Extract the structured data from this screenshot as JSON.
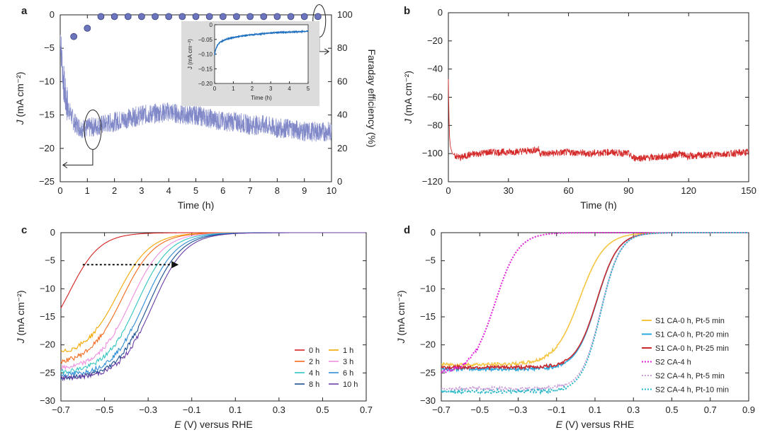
{
  "figure": {
    "panels": [
      "a",
      "b",
      "c",
      "d"
    ]
  },
  "chart_data": [
    {
      "panel": "a",
      "type": "line",
      "xlabel": "Time (h)",
      "ylabel": "J (mA cm⁻²)",
      "ylabel2": "Faraday efficiency (%)",
      "xlim": [
        0,
        10
      ],
      "ylim": [
        -25,
        0
      ],
      "ylim2": [
        0,
        100
      ],
      "xticks": [
        0,
        1,
        2,
        3,
        4,
        5,
        6,
        7,
        8,
        9,
        10
      ],
      "yticks": [
        0,
        -5,
        -10,
        -15,
        -20,
        -25
      ],
      "yticks2": [
        100,
        80,
        60,
        40,
        20,
        0
      ],
      "colors": {
        "current": "#8088c8",
        "fe_marker": "#6b74bd",
        "inset_line": "#1f6fbf",
        "inset_bg": "#dcdcdc"
      },
      "current_trace": {
        "name": "J",
        "x": [
          0,
          0.05,
          0.1,
          0.15,
          0.2,
          0.3,
          0.4,
          0.5,
          0.6,
          0.8,
          1.0,
          1.2,
          1.5,
          2,
          2.5,
          3,
          3.5,
          4,
          4.5,
          5,
          5.5,
          6,
          6.5,
          7,
          7.5,
          8,
          8.5,
          9,
          9.5,
          10
        ],
        "y": [
          -3,
          -6,
          -9,
          -11,
          -12.5,
          -14,
          -15,
          -16,
          -16.5,
          -17,
          -17,
          -16.8,
          -16.5,
          -16,
          -15.5,
          -15,
          -14.8,
          -14.5,
          -15,
          -15,
          -15.5,
          -16,
          -16,
          -16.5,
          -16.5,
          -17,
          -17,
          -17.5,
          -17.5,
          -17.5
        ],
        "noise_amplitude": 1.5
      },
      "fe_series": {
        "name": "Faraday efficiency",
        "x": [
          0.5,
          1.0,
          1.5,
          2.0,
          2.5,
          3.0,
          3.5,
          4.0,
          4.5,
          5.0,
          5.5,
          6.0,
          6.5,
          7.0,
          7.5,
          8.0,
          8.5,
          9.0,
          9.5
        ],
        "y": [
          87,
          92,
          99,
          99,
          99,
          99,
          99,
          99,
          99,
          99,
          99,
          99,
          99,
          99,
          99,
          99,
          99,
          99,
          99
        ]
      },
      "inset": {
        "xlabel": "Time (h)",
        "ylabel": "J (mA cm⁻²)",
        "xlim": [
          0,
          5
        ],
        "ylim": [
          -0.2,
          0
        ],
        "xticks": [
          0,
          1,
          2,
          3,
          4,
          5
        ],
        "yticks": [
          0,
          -0.05,
          -0.1,
          -0.15,
          -0.2
        ],
        "ytick_labels": [
          "0",
          "-0.05",
          "-0.10",
          "-0.15",
          "-0.20"
        ],
        "x": [
          0,
          0.03,
          0.08,
          0.15,
          0.25,
          0.4,
          0.6,
          0.8,
          1.0,
          1.5,
          2.0,
          2.5,
          3.0,
          3.5,
          4.0,
          4.5,
          5.0
        ],
        "y": [
          -0.105,
          -0.09,
          -0.08,
          -0.07,
          -0.062,
          -0.055,
          -0.05,
          -0.046,
          -0.043,
          -0.038,
          -0.034,
          -0.031,
          -0.028,
          -0.026,
          -0.025,
          -0.024,
          -0.022
        ]
      }
    },
    {
      "panel": "b",
      "type": "line",
      "xlabel": "Time (h)",
      "ylabel": "J (mA cm⁻²)",
      "xlim": [
        0,
        150
      ],
      "ylim": [
        -120,
        0
      ],
      "xticks": [
        0,
        30,
        60,
        90,
        120,
        150
      ],
      "yticks": [
        0,
        -20,
        -40,
        -60,
        -80,
        -100,
        -120
      ],
      "color": "#d42a2a",
      "x": [
        0,
        0.3,
        0.6,
        1,
        2,
        4,
        6,
        10,
        20,
        30,
        40,
        45,
        46,
        50,
        60,
        70,
        80,
        90,
        92,
        100,
        110,
        115,
        120,
        130,
        140,
        150
      ],
      "y": [
        -47,
        -75,
        -88,
        -95,
        -100,
        -102,
        -103,
        -101,
        -99,
        -99,
        -98,
        -97,
        -100,
        -100,
        -99,
        -100,
        -99,
        -100,
        -103,
        -103,
        -102,
        -100,
        -102,
        -101,
        -100,
        -99
      ],
      "noise_amplitude": 2.5
    },
    {
      "panel": "c",
      "type": "line",
      "xlabel": "E (V) versus RHE",
      "ylabel": "J (mA cm⁻²)",
      "xlim": [
        -0.7,
        0.7
      ],
      "ylim": [
        -30,
        0
      ],
      "xticks": [
        -0.7,
        -0.5,
        -0.3,
        -0.1,
        0.1,
        0.3,
        0.5,
        0.7
      ],
      "yticks": [
        0,
        -5,
        -10,
        -15,
        -20,
        -25,
        -30
      ],
      "legend_position": "bottom-right",
      "arrow": {
        "from": [
          -0.6,
          -5.7
        ],
        "to": [
          -0.16,
          -5.7
        ],
        "style": "dotted"
      },
      "series": [
        {
          "name": "0 h",
          "color": "#d42020",
          "half_E": -0.66,
          "width": 0.07,
          "J_lim": -21
        },
        {
          "name": "1 h",
          "color": "#f2a800",
          "half_E": -0.44,
          "width": 0.075,
          "J_lim": -22
        },
        {
          "name": "2 h",
          "color": "#f26b1d",
          "half_E": -0.42,
          "width": 0.075,
          "J_lim": -23.5
        },
        {
          "name": "3 h",
          "color": "#f08fe0",
          "half_E": -0.38,
          "width": 0.075,
          "J_lim": -24.5
        },
        {
          "name": "4 h",
          "color": "#33c4c4",
          "half_E": -0.35,
          "width": 0.075,
          "J_lim": -25
        },
        {
          "name": "6 h",
          "color": "#2f8ed6",
          "half_E": -0.32,
          "width": 0.075,
          "J_lim": -25.5
        },
        {
          "name": "8 h",
          "color": "#1a4f8f",
          "half_E": -0.3,
          "width": 0.075,
          "J_lim": -26
        },
        {
          "name": "10 h",
          "color": "#6a3fa6",
          "half_E": -0.28,
          "width": 0.075,
          "J_lim": -26
        }
      ]
    },
    {
      "panel": "d",
      "type": "line",
      "xlabel": "E (V) versus RHE",
      "ylabel": "J (mA cm⁻²)",
      "xlim": [
        -0.7,
        0.9
      ],
      "ylim": [
        -30,
        0
      ],
      "xticks": [
        -0.7,
        -0.5,
        -0.3,
        -0.1,
        0.1,
        0.3,
        0.5,
        0.7,
        0.9
      ],
      "yticks": [
        0,
        -5,
        -10,
        -15,
        -20,
        -25,
        -30
      ],
      "legend_position": "bottom-right",
      "series": [
        {
          "name": "S1 CA-0 h, Pt-5 min",
          "color": "#f5c542",
          "dash": false,
          "half_E": 0.02,
          "width": 0.065,
          "J_lim": -23.5
        },
        {
          "name": "S1 CA-0 h, Pt-20 min",
          "color": "#2aa8e0",
          "dash": false,
          "half_E": 0.11,
          "width": 0.055,
          "J_lim": -24.3
        },
        {
          "name": "S1 CA-0 h, Pt-25 min",
          "color": "#c8282e",
          "dash": false,
          "half_E": 0.11,
          "width": 0.055,
          "J_lim": -24.0
        },
        {
          "name": "S2 CA-4 h",
          "color": "#e020d8",
          "dash": true,
          "half_E": -0.42,
          "width": 0.06,
          "J_lim": -25
        },
        {
          "name": "S2 CA-4 h, Pt-5 min",
          "color": "#c9a0d8",
          "dash": true,
          "half_E": 0.13,
          "width": 0.05,
          "J_lim": -27.8
        },
        {
          "name": "S2 CA-4 h, Pt-10 min",
          "color": "#2ab8c8",
          "dash": true,
          "half_E": 0.13,
          "width": 0.05,
          "J_lim": -28.3
        }
      ]
    }
  ]
}
